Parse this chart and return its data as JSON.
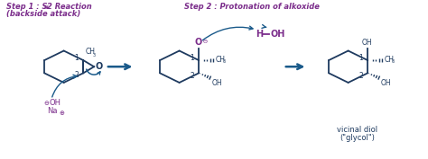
{
  "bg_color": "#ffffff",
  "dark_blue": "#1e3a5f",
  "purple": "#7b2d8b",
  "arrow_color": "#1a5a8a",
  "step1_line1": "Step 1 : S",
  "step1_N": "N",
  "step1_line1b": "2 Reaction",
  "step1_line2": "(backside attack)",
  "step2_title": "Step 2 : Protonation of alkoxide",
  "vicinal": "vicinal diol",
  "glycol": "(\"glycol\")",
  "fig_w": 4.74,
  "fig_h": 1.77,
  "dpi": 100
}
